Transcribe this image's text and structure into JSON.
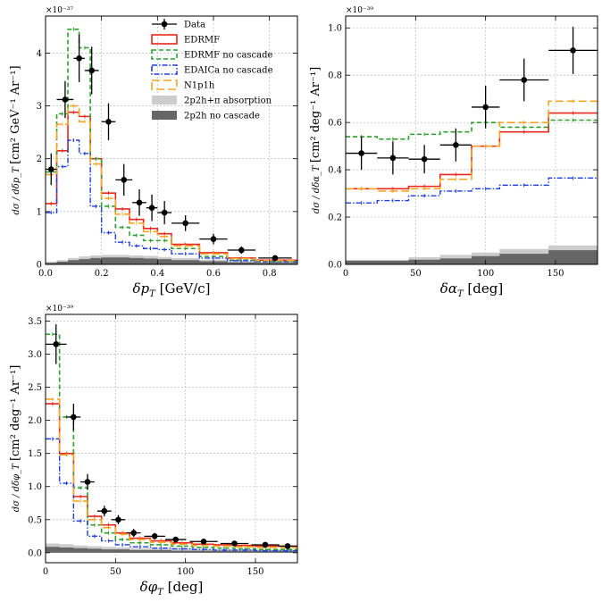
{
  "legend": {
    "items": [
      {
        "label": "Data",
        "color": "#000000",
        "kind": "data"
      },
      {
        "label": "EDRMF",
        "color": "#e8281e",
        "kind": "solid"
      },
      {
        "label": "EDRMF no cascade",
        "color": "#2ca02c",
        "kind": "dashed"
      },
      {
        "label": "EDAICa no cascade",
        "color": "#1f3fe0",
        "kind": "dashdot"
      },
      {
        "label": "N1p1h",
        "color": "#f5a623",
        "kind": "longdash"
      },
      {
        "label": "2p2h+π absorption",
        "color": "#cccccc",
        "kind": "fill"
      },
      {
        "label": "2p2h no cascade",
        "color": "#666666",
        "kind": "fill"
      }
    ]
  },
  "colors": {
    "data": "#000000",
    "edrmf": "#e8281e",
    "edrmf_nc": "#2ca02c",
    "edaica": "#1f3fe0",
    "n1p1h": "#f5a623",
    "abs": "#cccccc",
    "nocasc": "#666666"
  },
  "chart_data": [
    {
      "type": "step",
      "id": "dpt",
      "xlabel": "δp_T [GeV/c]",
      "xlabel_main": "δp",
      "xlabel_sub": "T",
      "xlabel_unit": " [GeV/c]",
      "ylabel_frac": "dσ / dδp_T",
      "ylabel_unit": "[cm² GeV⁻¹ Ar⁻¹]",
      "exponent": "×10⁻³⁷",
      "xlim": [
        0,
        0.9
      ],
      "ylim": [
        0,
        4.7
      ],
      "xticks": [
        0,
        0.2,
        0.4,
        0.6,
        0.8
      ],
      "xtick_labels": [
        "0.0",
        "0.2",
        "0.4",
        "0.6",
        "0.8"
      ],
      "yticks": [
        0,
        1,
        2,
        3,
        4
      ],
      "ytick_labels": [
        "0",
        "1",
        "2",
        "3",
        "4"
      ],
      "edges": [
        0,
        0.04,
        0.08,
        0.12,
        0.16,
        0.2,
        0.25,
        0.3,
        0.35,
        0.4,
        0.45,
        0.55,
        0.65,
        0.75,
        0.9
      ],
      "series": [
        {
          "name": "EDRMF",
          "values": [
            1.15,
            2.15,
            2.88,
            2.8,
            2.0,
            1.35,
            1.05,
            0.85,
            0.68,
            0.58,
            0.38,
            0.22,
            0.12,
            0.08
          ]
        },
        {
          "name": "EDRMF no cascade",
          "values": [
            1.75,
            2.85,
            4.45,
            4.1,
            2.0,
            1.1,
            0.7,
            0.55,
            0.45,
            0.45,
            0.3,
            0.15,
            0.08,
            0.05
          ]
        },
        {
          "name": "EDAICa no cascade",
          "values": [
            0.98,
            1.85,
            2.35,
            2.1,
            1.1,
            0.6,
            0.42,
            0.35,
            0.3,
            0.28,
            0.2,
            0.12,
            0.07,
            0.05
          ]
        },
        {
          "name": "N1p1h",
          "values": [
            1.7,
            2.65,
            3.0,
            2.7,
            1.9,
            1.25,
            0.95,
            0.78,
            0.62,
            0.53,
            0.35,
            0.2,
            0.11,
            0.07
          ]
        },
        {
          "name": "2p2h+π absorption",
          "values": [
            0.05,
            0.08,
            0.12,
            0.15,
            0.17,
            0.18,
            0.18,
            0.17,
            0.16,
            0.14,
            0.12,
            0.09,
            0.06,
            0.04
          ]
        },
        {
          "name": "2p2h no cascade",
          "values": [
            0.03,
            0.05,
            0.08,
            0.1,
            0.12,
            0.13,
            0.13,
            0.12,
            0.11,
            0.1,
            0.08,
            0.06,
            0.04,
            0.03
          ]
        }
      ],
      "data_points": {
        "x": [
          0.02,
          0.07,
          0.12,
          0.165,
          0.225,
          0.28,
          0.335,
          0.38,
          0.425,
          0.5,
          0.6,
          0.7,
          0.82
        ],
        "xerr": [
          0.02,
          0.03,
          0.02,
          0.025,
          0.025,
          0.03,
          0.025,
          0.02,
          0.025,
          0.05,
          0.05,
          0.05,
          0.06
        ],
        "y": [
          1.8,
          3.12,
          3.9,
          3.67,
          2.7,
          1.6,
          1.17,
          1.07,
          0.98,
          0.78,
          0.48,
          0.27,
          0.12
        ],
        "yerr": [
          0.3,
          0.35,
          0.45,
          0.45,
          0.35,
          0.3,
          0.25,
          0.25,
          0.22,
          0.15,
          0.1,
          0.07,
          0.05
        ]
      }
    },
    {
      "type": "step",
      "id": "dat",
      "xlabel": "δα_T [deg]",
      "xlabel_main": "δα",
      "xlabel_sub": "T",
      "xlabel_unit": " [deg]",
      "ylabel_frac": "dσ / dδα_T",
      "ylabel_unit": "[cm² deg⁻¹ Ar⁻¹]",
      "exponent": "×10⁻³⁹",
      "xlim": [
        0,
        180
      ],
      "ylim": [
        0,
        1.05
      ],
      "xticks": [
        0,
        50,
        100,
        150
      ],
      "xtick_labels": [
        "0",
        "50",
        "100",
        "150"
      ],
      "yticks": [
        0,
        0.2,
        0.4,
        0.6,
        0.8,
        1.0
      ],
      "ytick_labels": [
        "0.0",
        "0.2",
        "0.4",
        "0.6",
        "0.8",
        "1.0"
      ],
      "edges": [
        0,
        22.5,
        45,
        67.5,
        90,
        110,
        145,
        180
      ],
      "series": [
        {
          "name": "EDRMF",
          "values": [
            0.32,
            0.32,
            0.33,
            0.38,
            0.5,
            0.56,
            0.64
          ]
        },
        {
          "name": "EDRMF no cascade",
          "values": [
            0.54,
            0.53,
            0.55,
            0.56,
            0.6,
            0.58,
            0.61
          ]
        },
        {
          "name": "EDAICa no cascade",
          "values": [
            0.26,
            0.27,
            0.29,
            0.31,
            0.32,
            0.335,
            0.365
          ]
        },
        {
          "name": "N1p1h",
          "values": [
            0.32,
            0.31,
            0.32,
            0.36,
            0.5,
            0.6,
            0.69
          ]
        },
        {
          "name": "2p2h+π absorption",
          "values": [
            0.02,
            0.02,
            0.03,
            0.04,
            0.05,
            0.065,
            0.08
          ]
        },
        {
          "name": "2p2h no cascade",
          "values": [
            0.015,
            0.015,
            0.02,
            0.025,
            0.035,
            0.045,
            0.06
          ]
        }
      ],
      "data_points": {
        "x": [
          11.25,
          33.75,
          56.25,
          78.75,
          100,
          127.5,
          162.5
        ],
        "xerr": [
          11.25,
          11.25,
          11.25,
          11.25,
          10,
          17.5,
          17.5
        ],
        "y": [
          0.47,
          0.45,
          0.445,
          0.505,
          0.665,
          0.78,
          0.905
        ],
        "yerr": [
          0.07,
          0.07,
          0.06,
          0.07,
          0.09,
          0.09,
          0.1
        ]
      }
    },
    {
      "type": "step",
      "id": "dphi",
      "xlabel": "δφ_T [deg]",
      "xlabel_main": "δφ",
      "xlabel_sub": "T",
      "xlabel_unit": " [deg]",
      "ylabel_frac": "dσ / dδφ_T",
      "ylabel_unit": "[cm² deg⁻¹ Ar⁻¹]",
      "exponent": "×10⁻³⁹",
      "xlim": [
        0,
        180
      ],
      "ylim": [
        -0.15,
        3.6
      ],
      "xticks": [
        0,
        50,
        100,
        150
      ],
      "xtick_labels": [
        "0",
        "50",
        "100",
        "150"
      ],
      "yticks": [
        0,
        0.5,
        1,
        1.5,
        2,
        2.5,
        3,
        3.5
      ],
      "ytick_labels": [
        "0.0",
        "0.5",
        "1.0",
        "1.5",
        "2.0",
        "2.5",
        "3.0",
        "3.5"
      ],
      "edges": [
        0,
        10,
        20,
        30,
        40,
        50,
        60,
        75,
        90,
        105,
        120,
        135,
        150,
        165,
        180
      ],
      "series": [
        {
          "name": "EDRMF",
          "values": [
            2.25,
            1.5,
            0.85,
            0.55,
            0.42,
            0.3,
            0.22,
            0.18,
            0.15,
            0.13,
            0.12,
            0.11,
            0.1,
            0.1
          ]
        },
        {
          "name": "EDRMF no cascade",
          "values": [
            3.3,
            2.05,
            0.98,
            0.42,
            0.3,
            0.2,
            0.15,
            0.12,
            0.1,
            0.08,
            0.07,
            0.06,
            0.05,
            0.05
          ]
        },
        {
          "name": "EDAICa no cascade",
          "values": [
            1.72,
            1.05,
            0.48,
            0.25,
            0.18,
            0.12,
            0.09,
            0.07,
            0.06,
            0.05,
            0.04,
            0.04,
            0.03,
            0.03
          ]
        },
        {
          "name": "N1p1h",
          "values": [
            2.32,
            1.48,
            0.78,
            0.5,
            0.38,
            0.28,
            0.2,
            0.16,
            0.13,
            0.11,
            0.1,
            0.09,
            0.08,
            0.08
          ]
        },
        {
          "name": "2p2h+π absorption",
          "values": [
            0.14,
            0.13,
            0.11,
            0.1,
            0.09,
            0.08,
            0.07,
            0.06,
            0.06,
            0.05,
            0.05,
            0.05,
            0.05,
            0.05
          ]
        },
        {
          "name": "2p2h no cascade",
          "values": [
            0.09,
            0.08,
            0.07,
            0.06,
            0.05,
            0.05,
            0.04,
            0.04,
            0.03,
            0.03,
            0.03,
            0.03,
            0.03,
            0.03
          ]
        }
      ],
      "data_points": {
        "x": [
          7.5,
          20,
          30,
          42,
          52,
          63,
          78,
          93,
          113,
          135,
          157,
          173
        ],
        "xerr": [
          7.5,
          5,
          5,
          5,
          5,
          5,
          7.5,
          7.5,
          10,
          10,
          10,
          7
        ],
        "y": [
          3.15,
          2.05,
          1.07,
          0.63,
          0.5,
          0.3,
          0.25,
          0.2,
          0.17,
          0.14,
          0.12,
          0.1
        ],
        "yerr": [
          0.3,
          0.2,
          0.12,
          0.08,
          0.07,
          0.06,
          0.05,
          0.04,
          0.04,
          0.03,
          0.03,
          0.03
        ]
      }
    }
  ]
}
